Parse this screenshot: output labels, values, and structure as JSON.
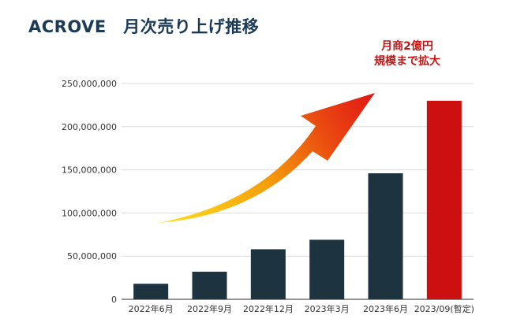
{
  "title": "ACROVE　月次売り上げ推移",
  "callout": {
    "line1": "月商2億円",
    "line2": "規模まで拡大"
  },
  "colors": {
    "bar": "#1e3340",
    "highlight": "#cc0f0f",
    "title": "#1a3a56",
    "callout": "#c41616"
  },
  "chart_data": {
    "type": "bar",
    "title": "ACROVE　月次売り上げ推移",
    "xlabel": "",
    "ylabel": "",
    "categories": [
      "2022年6月",
      "2022年9月",
      "2022年12月",
      "2023年3月",
      "2023年6月",
      "2023/09(暫定)"
    ],
    "values": [
      18000000,
      32000000,
      58000000,
      69000000,
      146000000,
      230000000
    ],
    "ylim": [
      0,
      250000000
    ],
    "yticks": [
      {
        "value": 0,
        "label": "0"
      },
      {
        "value": 50000000,
        "label": "50,000,000"
      },
      {
        "value": 100000000,
        "label": "100,000,000"
      },
      {
        "value": 150000000,
        "label": "150,000,000"
      },
      {
        "value": 200000000,
        "label": "200,000,000"
      },
      {
        "value": 250000000,
        "label": "250,000,000"
      }
    ],
    "highlight_index": 5,
    "grid": true,
    "legend": "none",
    "annotation": "upward growth arrow"
  }
}
